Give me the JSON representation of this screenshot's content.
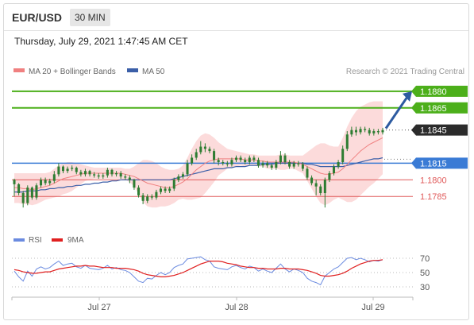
{
  "header": {
    "pair": "EUR/USD",
    "interval": "30 MIN",
    "timestamp": "Thursday, July 29, 2021 1:47:45 AM CET"
  },
  "legend": {
    "ma20": "MA 20 + Bollinger Bands",
    "ma50": "MA 50",
    "credit": "Research © 2021 Trading Central",
    "rsi": "RSI",
    "nine_ma": "9MA"
  },
  "colors": {
    "ma20": "#f08080",
    "ma50": "#3b5fa8",
    "band_fill": "#fbd5d5",
    "resistance": "#4caf1a",
    "pivot": "#3a7bd5",
    "support": "#e05a5a",
    "candle": "#2e7d32",
    "rsi": "#6b8be0",
    "rsi_ma": "#e02020"
  },
  "chart_data": {
    "type": "candlestick",
    "ylim": [
      1.176,
      1.189
    ],
    "x_labels": [
      "Jul 27",
      "Jul 28",
      "Jul 29"
    ],
    "levels": [
      {
        "value": 1.188,
        "label": "1.1880",
        "kind": "resistance"
      },
      {
        "value": 1.1865,
        "label": "1.1865",
        "kind": "resistance"
      },
      {
        "value": 1.1845,
        "label": "1.1845",
        "kind": "last"
      },
      {
        "value": 1.1815,
        "label": "1.1815",
        "kind": "pivot"
      },
      {
        "value": 1.18,
        "label": "1.1800",
        "kind": "support"
      },
      {
        "value": 1.1785,
        "label": "1.1785",
        "kind": "support"
      }
    ],
    "forecast_arrow": {
      "from": 1.1845,
      "to": 1.188
    },
    "closes": [
      1.1796,
      1.1788,
      1.1779,
      1.1793,
      1.1784,
      1.1795,
      1.18,
      1.1797,
      1.1799,
      1.1805,
      1.1812,
      1.1808,
      1.181,
      1.1811,
      1.1807,
      1.1805,
      1.1808,
      1.1805,
      1.1804,
      1.1803,
      1.1804,
      1.1809,
      1.1805,
      1.1806,
      1.1803,
      1.1802,
      1.18,
      1.1793,
      1.1786,
      1.1781,
      1.1785,
      1.1784,
      1.1789,
      1.1792,
      1.179,
      1.1792,
      1.18,
      1.1803,
      1.1805,
      1.1815,
      1.182,
      1.1825,
      1.183,
      1.1828,
      1.1826,
      1.1818,
      1.1816,
      1.1815,
      1.1814,
      1.1818,
      1.182,
      1.1818,
      1.1816,
      1.182,
      1.1818,
      1.1813,
      1.1815,
      1.1813,
      1.1811,
      1.1816,
      1.1822,
      1.1816,
      1.1812,
      1.1815,
      1.1814,
      1.181,
      1.1802,
      1.1797,
      1.1794,
      1.1788,
      1.18,
      1.1806,
      1.1812,
      1.1816,
      1.1828,
      1.1841,
      1.1845,
      1.1843,
      1.1846,
      1.1845,
      1.1842,
      1.1844,
      1.1843,
      1.1845
    ],
    "opens": [
      1.18,
      1.1796,
      1.1788,
      1.1779,
      1.1793,
      1.1784,
      1.1795,
      1.18,
      1.1797,
      1.1799,
      1.1805,
      1.1812,
      1.1808,
      1.181,
      1.1811,
      1.1807,
      1.1805,
      1.1808,
      1.1805,
      1.1804,
      1.1803,
      1.1804,
      1.1809,
      1.1805,
      1.1806,
      1.1803,
      1.1802,
      1.18,
      1.1793,
      1.1786,
      1.1781,
      1.1785,
      1.1784,
      1.1789,
      1.1792,
      1.179,
      1.1792,
      1.18,
      1.1803,
      1.1805,
      1.1815,
      1.182,
      1.1825,
      1.183,
      1.1828,
      1.1826,
      1.1818,
      1.1816,
      1.1815,
      1.1814,
      1.1818,
      1.182,
      1.1818,
      1.1816,
      1.182,
      1.1818,
      1.1813,
      1.1815,
      1.1813,
      1.1811,
      1.1816,
      1.1822,
      1.1816,
      1.1812,
      1.1815,
      1.1814,
      1.181,
      1.1802,
      1.1797,
      1.1794,
      1.1788,
      1.18,
      1.1806,
      1.1812,
      1.1816,
      1.1828,
      1.1841,
      1.1845,
      1.1843,
      1.1846,
      1.1845,
      1.1842,
      1.1844,
      1.1843
    ],
    "highs": [
      1.1801,
      1.1797,
      1.179,
      1.1795,
      1.1794,
      1.1797,
      1.1802,
      1.1802,
      1.1801,
      1.1808,
      1.1815,
      1.1813,
      1.1812,
      1.1813,
      1.1812,
      1.1809,
      1.181,
      1.1809,
      1.1807,
      1.1806,
      1.1806,
      1.1811,
      1.181,
      1.1808,
      1.1808,
      1.1805,
      1.1804,
      1.1801,
      1.1795,
      1.1788,
      1.1787,
      1.1787,
      1.1791,
      1.1794,
      1.1794,
      1.1794,
      1.1802,
      1.1805,
      1.1807,
      1.1818,
      1.1823,
      1.1828,
      1.1835,
      1.1833,
      1.183,
      1.1828,
      1.182,
      1.1818,
      1.1817,
      1.182,
      1.1822,
      1.1822,
      1.182,
      1.1822,
      1.1822,
      1.182,
      1.1817,
      1.1817,
      1.1815,
      1.1818,
      1.1826,
      1.1824,
      1.1818,
      1.1817,
      1.1817,
      1.1816,
      1.1812,
      1.1804,
      1.18,
      1.1796,
      1.1802,
      1.1808,
      1.1814,
      1.1818,
      1.1831,
      1.1844,
      1.1848,
      1.1848,
      1.1848,
      1.1848,
      1.1847,
      1.1846,
      1.1846,
      1.1847
    ],
    "lows": [
      1.1785,
      1.1786,
      1.1775,
      1.1777,
      1.1782,
      1.1782,
      1.1793,
      1.1795,
      1.1795,
      1.1797,
      1.1803,
      1.1806,
      1.1806,
      1.1808,
      1.1805,
      1.1803,
      1.1803,
      1.1803,
      1.1802,
      1.1801,
      1.1801,
      1.1802,
      1.1803,
      1.1803,
      1.1801,
      1.18,
      1.1797,
      1.1791,
      1.1784,
      1.1778,
      1.1779,
      1.1782,
      1.1782,
      1.1787,
      1.1788,
      1.1788,
      1.179,
      1.1798,
      1.1801,
      1.1803,
      1.1813,
      1.1818,
      1.1823,
      1.1825,
      1.1824,
      1.1815,
      1.1813,
      1.1813,
      1.1812,
      1.1812,
      1.1816,
      1.1816,
      1.1814,
      1.1814,
      1.1816,
      1.1811,
      1.1811,
      1.1811,
      1.1809,
      1.1809,
      1.1814,
      1.1814,
      1.181,
      1.181,
      1.1812,
      1.1808,
      1.18,
      1.1795,
      1.1786,
      1.1786,
      1.1775,
      1.1798,
      1.1804,
      1.181,
      1.1814,
      1.1826,
      1.1839,
      1.184,
      1.1841,
      1.1843,
      1.184,
      1.184,
      1.1841,
      1.1841
    ],
    "ma20": [
      1.1793,
      1.1793,
      1.1792,
      1.1792,
      1.1791,
      1.1792,
      1.1793,
      1.1794,
      1.1795,
      1.1797,
      1.1799,
      1.1801,
      1.1802,
      1.1803,
      1.1804,
      1.1805,
      1.1806,
      1.1806,
      1.1806,
      1.1806,
      1.1806,
      1.1806,
      1.1806,
      1.1806,
      1.1806,
      1.1805,
      1.1804,
      1.1803,
      1.1801,
      1.1799,
      1.1797,
      1.1796,
      1.1795,
      1.1794,
      1.1793,
      1.1793,
      1.1794,
      1.1796,
      1.1798,
      1.1801,
      1.1805,
      1.1809,
      1.1812,
      1.1815,
      1.1817,
      1.1818,
      1.1819,
      1.1819,
      1.1819,
      1.1819,
      1.1819,
      1.1819,
      1.1818,
      1.1818,
      1.1818,
      1.1817,
      1.1817,
      1.1816,
      1.1816,
      1.1816,
      1.1816,
      1.1816,
      1.1816,
      1.1816,
      1.1815,
      1.1814,
      1.1812,
      1.181,
      1.1808,
      1.1806,
      1.1805,
      1.1805,
      1.1806,
      1.1807,
      1.181,
      1.1814,
      1.1818,
      1.1822,
      1.1826,
      1.1829,
      1.1832,
      1.1834,
      1.1836,
      1.1838
    ],
    "bb_upper": [
      1.1806,
      1.1806,
      1.1806,
      1.1806,
      1.1806,
      1.1806,
      1.1806,
      1.1806,
      1.1807,
      1.181,
      1.1813,
      1.1815,
      1.1816,
      1.1816,
      1.1815,
      1.1814,
      1.1813,
      1.1812,
      1.1811,
      1.1811,
      1.1811,
      1.1811,
      1.1811,
      1.1811,
      1.1811,
      1.181,
      1.181,
      1.1812,
      1.1815,
      1.1818,
      1.1818,
      1.1817,
      1.1815,
      1.1812,
      1.181,
      1.1809,
      1.1809,
      1.181,
      1.1813,
      1.182,
      1.1828,
      1.1835,
      1.184,
      1.1842,
      1.1841,
      1.1838,
      1.1834,
      1.1831,
      1.1828,
      1.1827,
      1.1826,
      1.1825,
      1.1824,
      1.1823,
      1.1823,
      1.1822,
      1.1822,
      1.1822,
      1.1822,
      1.1822,
      1.1823,
      1.1823,
      1.1822,
      1.1822,
      1.1822,
      1.1822,
      1.1825,
      1.1828,
      1.1831,
      1.1833,
      1.1833,
      1.1831,
      1.183,
      1.183,
      1.1838,
      1.1848,
      1.1856,
      1.1862,
      1.1866,
      1.1868,
      1.187,
      1.1871,
      1.1871,
      1.1871
    ],
    "bb_lower": [
      1.1779,
      1.1779,
      1.1778,
      1.1778,
      1.1777,
      1.1778,
      1.178,
      1.1782,
      1.1783,
      1.1784,
      1.1785,
      1.1787,
      1.1788,
      1.179,
      1.1793,
      1.1796,
      1.1799,
      1.18,
      1.1801,
      1.1801,
      1.1801,
      1.1801,
      1.1801,
      1.1801,
      1.1801,
      1.18,
      1.1798,
      1.1794,
      1.1787,
      1.178,
      1.1776,
      1.1775,
      1.1775,
      1.1776,
      1.1776,
      1.1777,
      1.1779,
      1.1782,
      1.1783,
      1.1782,
      1.1782,
      1.1783,
      1.1784,
      1.1788,
      1.1793,
      1.1798,
      1.1804,
      1.1807,
      1.181,
      1.1811,
      1.1812,
      1.1813,
      1.1812,
      1.1813,
      1.1813,
      1.1812,
      1.1812,
      1.181,
      1.181,
      1.181,
      1.1809,
      1.1809,
      1.181,
      1.181,
      1.1808,
      1.1806,
      1.1799,
      1.1792,
      1.1785,
      1.1779,
      1.1777,
      1.1779,
      1.1782,
      1.1784,
      1.1782,
      1.178,
      1.178,
      1.1782,
      1.1786,
      1.179,
      1.1794,
      1.1797,
      1.1801,
      1.1805
    ],
    "ma50": [
      1.1789,
      1.1789,
      1.1789,
      1.179,
      1.179,
      1.179,
      1.1791,
      1.1791,
      1.1792,
      1.1792,
      1.1793,
      1.1793,
      1.1794,
      1.1794,
      1.1795,
      1.1795,
      1.1796,
      1.1796,
      1.1797,
      1.1797,
      1.1798,
      1.1798,
      1.1799,
      1.1799,
      1.18,
      1.18,
      1.18,
      1.18,
      1.18,
      1.18,
      1.18,
      1.18,
      1.18,
      1.18,
      1.18,
      1.18,
      1.1801,
      1.1802,
      1.1803,
      1.1804,
      1.1805,
      1.1806,
      1.1807,
      1.1808,
      1.1809,
      1.181,
      1.181,
      1.181,
      1.1811,
      1.1811,
      1.1812,
      1.1812,
      1.1812,
      1.1813,
      1.1813,
      1.1813,
      1.1814,
      1.1814,
      1.1814,
      1.1815,
      1.1815,
      1.1815,
      1.1815,
      1.1815,
      1.1815,
      1.1815,
      1.1814,
      1.1814,
      1.1813,
      1.1812,
      1.1812,
      1.1812,
      1.1812,
      1.1812,
      1.1812,
      1.1813,
      1.1814,
      1.1815,
      1.1816,
      1.1817,
      1.1818,
      1.1819,
      1.1819,
      1.182
    ],
    "rsi": {
      "ylim": [
        20,
        80
      ],
      "ticks": [
        70,
        50,
        30
      ],
      "values": [
        52,
        44,
        38,
        52,
        45,
        55,
        58,
        55,
        57,
        62,
        66,
        60,
        62,
        63,
        58,
        56,
        60,
        56,
        55,
        54,
        56,
        60,
        55,
        57,
        54,
        53,
        50,
        44,
        38,
        36,
        42,
        41,
        46,
        50,
        47,
        50,
        57,
        60,
        62,
        69,
        70,
        71,
        72,
        68,
        66,
        58,
        56,
        55,
        54,
        58,
        60,
        57,
        55,
        59,
        57,
        52,
        55,
        52,
        50,
        56,
        62,
        55,
        51,
        55,
        53,
        50,
        42,
        38,
        36,
        33,
        45,
        50,
        55,
        58,
        64,
        70,
        71,
        68,
        70,
        68,
        65,
        67,
        66,
        68
      ],
      "ma9": [
        54,
        53,
        51,
        50,
        49,
        49,
        50,
        51,
        51,
        53,
        55,
        56,
        57,
        58,
        59,
        59,
        60,
        59,
        59,
        58,
        57,
        57,
        57,
        56,
        56,
        56,
        55,
        54,
        52,
        49,
        47,
        46,
        45,
        44,
        44,
        45,
        46,
        48,
        50,
        53,
        56,
        59,
        62,
        64,
        66,
        66,
        66,
        65,
        63,
        62,
        61,
        59,
        58,
        57,
        57,
        56,
        56,
        55,
        55,
        55,
        56,
        56,
        55,
        55,
        55,
        54,
        53,
        51,
        49,
        46,
        45,
        45,
        46,
        47,
        49,
        52,
        56,
        59,
        62,
        64,
        66,
        67,
        67,
        68
      ]
    }
  }
}
